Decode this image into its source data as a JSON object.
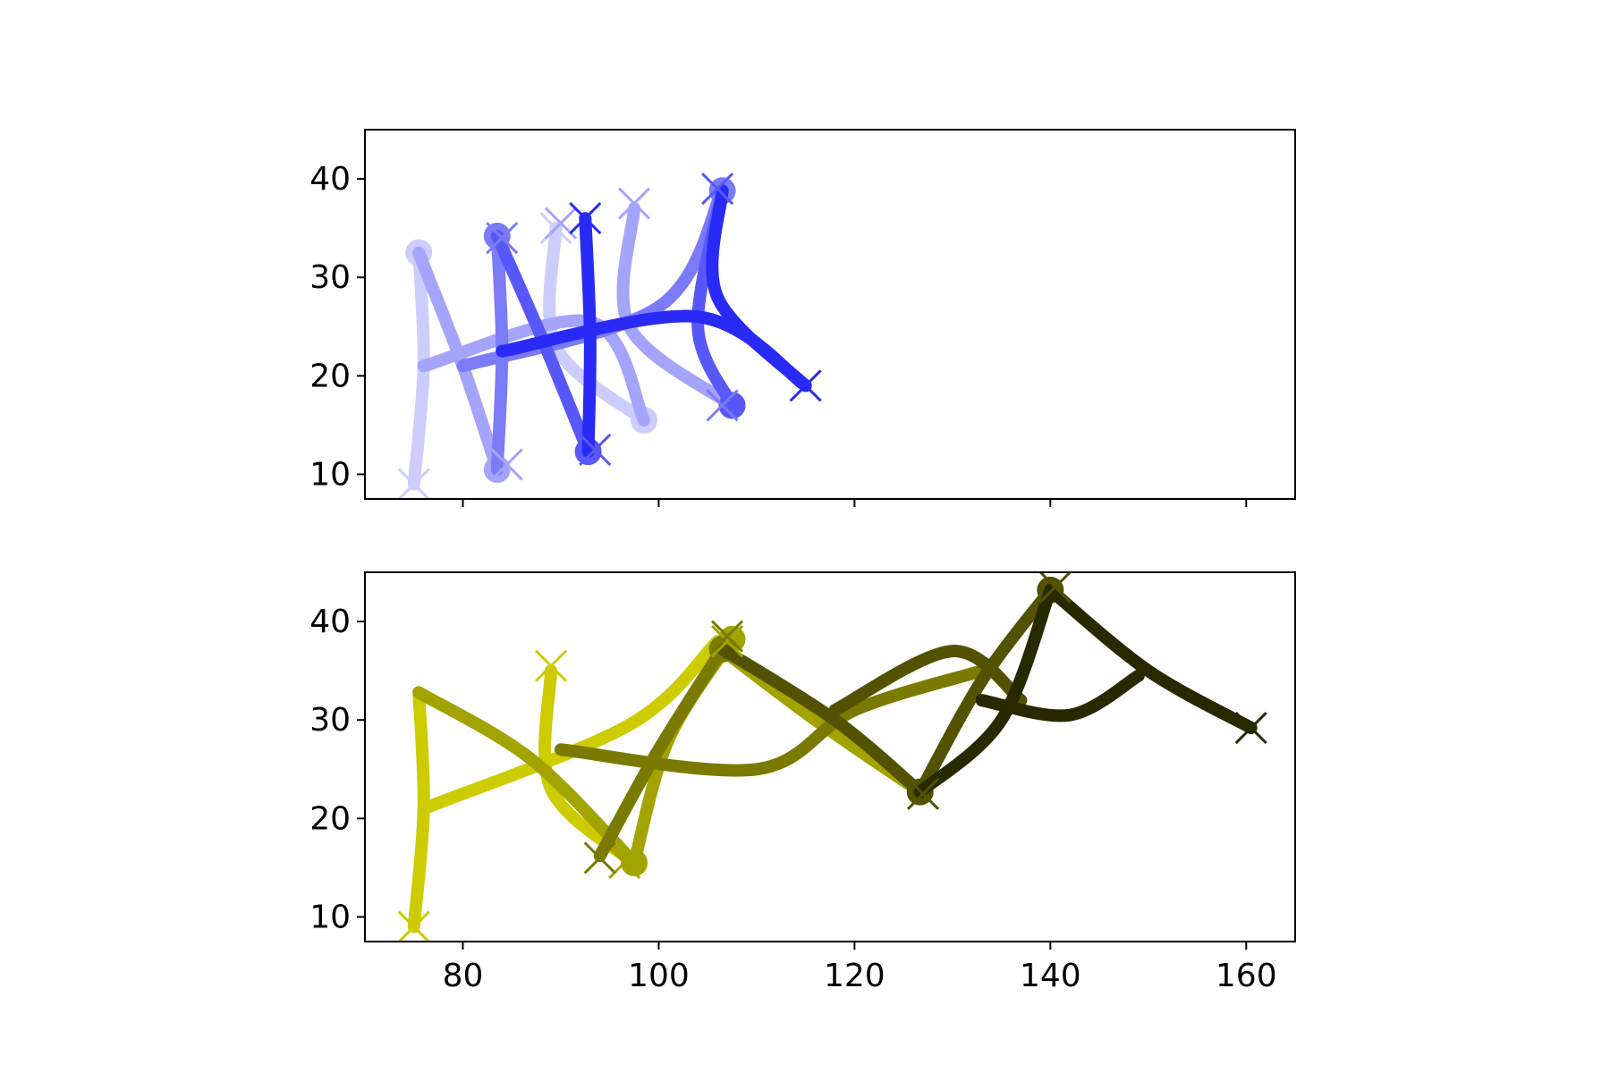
{
  "chart_data": [
    {
      "type": "line",
      "title": "",
      "xlabel": "",
      "ylabel": "",
      "xlim": [
        70,
        165
      ],
      "ylim": [
        7.5,
        45
      ],
      "x_ticks": [
        80,
        100,
        120,
        140,
        160
      ],
      "show_x_tick_labels": false,
      "y_ticks": [
        10,
        20,
        30,
        40
      ],
      "y_tick_labels": [
        "10",
        "20",
        "30",
        "40"
      ],
      "grid": false,
      "legend": "none",
      "series": [
        {
          "color": "#cdcdfd",
          "points": [
            [
              75,
              9
            ],
            [
              76,
              21
            ],
            [
              75.5,
              32.5
            ]
          ],
          "endpoint_marker": "circle"
        },
        {
          "color": "#cdcdfd",
          "points": [
            [
              89.5,
              35
            ],
            [
              89.5,
              23
            ],
            [
              98.5,
              15.5
            ]
          ],
          "endpoint_marker": "circle"
        },
        {
          "color": "#a4a4fc",
          "points": [
            [
              75.5,
              32.5
            ],
            [
              80,
              21
            ],
            [
              83.5,
              10.5
            ]
          ],
          "endpoint_marker": "circle"
        },
        {
          "color": "#a4a4fc",
          "points": [
            [
              97.5,
              37
            ],
            [
              97,
              25
            ],
            [
              107.5,
              17
            ]
          ],
          "endpoint_marker": "circle"
        },
        {
          "color": "#a4a4fc",
          "points": [
            [
              76,
              21
            ],
            [
              93,
              25.5
            ],
            [
              98.5,
              15.5
            ]
          ],
          "endpoint_marker": "none"
        },
        {
          "color": "#7b7bfa",
          "points": [
            [
              83.5,
              10.5
            ],
            [
              84,
              22.5
            ],
            [
              83.5,
              34.2
            ]
          ],
          "endpoint_marker": "circle"
        },
        {
          "color": "#7b7bfa",
          "points": [
            [
              80,
              21
            ],
            [
              100,
              27
            ],
            [
              106.5,
              38.8
            ]
          ],
          "endpoint_marker": "circle"
        },
        {
          "color": "#5858f9",
          "points": [
            [
              83.5,
              34.2
            ],
            [
              88,
              24
            ],
            [
              92.8,
              12.3
            ]
          ],
          "endpoint_marker": "circle"
        },
        {
          "color": "#5858f9",
          "points": [
            [
              106.5,
              38.8
            ],
            [
              104,
              25
            ],
            [
              107.5,
              17
            ]
          ],
          "endpoint_marker": "circle"
        },
        {
          "color": "#2a2af6",
          "points": [
            [
              92.8,
              12.3
            ],
            [
              93,
              24
            ],
            [
              92.5,
              36
            ]
          ],
          "endpoint_marker": "none"
        },
        {
          "color": "#2a2af6",
          "points": [
            [
              84,
              22.5
            ],
            [
              104,
              26
            ],
            [
              115,
              19
            ]
          ],
          "endpoint_marker": "none"
        },
        {
          "color": "#2a2af6",
          "points": [
            [
              106.5,
              38.8
            ],
            [
              106,
              28
            ],
            [
              115,
              19
            ]
          ],
          "endpoint_marker": "none"
        }
      ],
      "cross_markers": [
        {
          "color": "#cdcdfd",
          "x": 75,
          "y": 9
        },
        {
          "color": "#cdcdfd",
          "x": 89.5,
          "y": 35
        },
        {
          "color": "#a4a4fc",
          "x": 84.5,
          "y": 11
        },
        {
          "color": "#a4a4fc",
          "x": 97.5,
          "y": 37.5
        },
        {
          "color": "#a4a4fc",
          "x": 90,
          "y": 35.5
        },
        {
          "color": "#7b7bfa",
          "x": 84,
          "y": 34
        },
        {
          "color": "#7b7bfa",
          "x": 106.5,
          "y": 17
        },
        {
          "color": "#5858f9",
          "x": 93.5,
          "y": 12.5
        },
        {
          "color": "#5858f9",
          "x": 106,
          "y": 39
        },
        {
          "color": "#2a2af6",
          "x": 92.5,
          "y": 36
        },
        {
          "color": "#2a2af6",
          "x": 115,
          "y": 19
        }
      ]
    },
    {
      "type": "line",
      "title": "",
      "xlabel": "",
      "ylabel": "",
      "xlim": [
        70,
        165
      ],
      "ylim": [
        7.5,
        45
      ],
      "x_ticks": [
        80,
        100,
        120,
        140,
        160
      ],
      "x_tick_labels": [
        "80",
        "100",
        "120",
        "140",
        "160"
      ],
      "show_x_tick_labels": true,
      "y_ticks": [
        10,
        20,
        30,
        40
      ],
      "y_tick_labels": [
        "10",
        "20",
        "30",
        "40"
      ],
      "grid": false,
      "legend": "none",
      "series": [
        {
          "color": "#cccc00",
          "points": [
            [
              75,
              9
            ],
            [
              76,
              21
            ],
            [
              75.5,
              32.8
            ]
          ],
          "endpoint_marker": "none"
        },
        {
          "color": "#cccc00",
          "points": [
            [
              89,
              35
            ],
            [
              89,
              23
            ],
            [
              97.5,
              15.5
            ]
          ],
          "endpoint_marker": "none"
        },
        {
          "color": "#cccc00",
          "points": [
            [
              76,
              21
            ],
            [
              97,
              29.5
            ],
            [
              106,
              38
            ]
          ],
          "endpoint_marker": "none"
        },
        {
          "color": "#a3a300",
          "points": [
            [
              75.5,
              32.8
            ],
            [
              87,
              26
            ],
            [
              97.5,
              15.5
            ]
          ],
          "endpoint_marker": "circle"
        },
        {
          "color": "#a3a300",
          "points": [
            [
              97.5,
              15.5
            ],
            [
              101,
              28
            ],
            [
              107.5,
              38.2
            ]
          ],
          "endpoint_marker": "circle"
        },
        {
          "color": "#a3a300",
          "points": [
            [
              106,
              37.5
            ],
            [
              116,
              30
            ],
            [
              126.7,
              22.7
            ]
          ],
          "endpoint_marker": "none"
        },
        {
          "color": "#7a7a00",
          "points": [
            [
              94,
              16.2
            ],
            [
              100,
              27
            ],
            [
              106.5,
              37.2
            ]
          ],
          "endpoint_marker": "circle"
        },
        {
          "color": "#7a7a00",
          "points": [
            [
              90,
              27
            ],
            [
              110,
              25
            ],
            [
              120,
              31
            ],
            [
              133,
              35
            ]
          ],
          "endpoint_marker": "none"
        },
        {
          "color": "#525200",
          "points": [
            [
              106.5,
              37.2
            ],
            [
              118,
              30
            ],
            [
              126.7,
              22.7
            ]
          ],
          "endpoint_marker": "circle"
        },
        {
          "color": "#525200",
          "points": [
            [
              126.7,
              22.7
            ],
            [
              133,
              34
            ],
            [
              140,
              43.2
            ]
          ],
          "endpoint_marker": "circle"
        },
        {
          "color": "#525200",
          "points": [
            [
              118,
              31
            ],
            [
              130,
              37
            ],
            [
              137,
              32
            ]
          ],
          "endpoint_marker": "none"
        },
        {
          "color": "#292900",
          "points": [
            [
              126.7,
              22.7
            ],
            [
              135,
              30
            ],
            [
              140,
              43.2
            ]
          ],
          "endpoint_marker": "none"
        },
        {
          "color": "#292900",
          "points": [
            [
              140,
              43.2
            ],
            [
              150,
              35
            ],
            [
              160.5,
              29.2
            ]
          ],
          "endpoint_marker": "none"
        },
        {
          "color": "#292900",
          "points": [
            [
              133,
              32
            ],
            [
              142,
              30.5
            ],
            [
              149,
              34.5
            ]
          ],
          "endpoint_marker": "none"
        }
      ],
      "cross_markers": [
        {
          "color": "#cccc00",
          "x": 75,
          "y": 9
        },
        {
          "color": "#cccc00",
          "x": 89,
          "y": 35.5
        },
        {
          "color": "#a3a300",
          "x": 96.5,
          "y": 15.5
        },
        {
          "color": "#a3a300",
          "x": 107,
          "y": 38
        },
        {
          "color": "#7a7a00",
          "x": 94,
          "y": 16
        },
        {
          "color": "#7a7a00",
          "x": 107,
          "y": 38.5
        },
        {
          "color": "#525200",
          "x": 127,
          "y": 22.5
        },
        {
          "color": "#525200",
          "x": 140.5,
          "y": 43.5
        },
        {
          "color": "#292900",
          "x": 160.5,
          "y": 29.2
        }
      ]
    }
  ]
}
